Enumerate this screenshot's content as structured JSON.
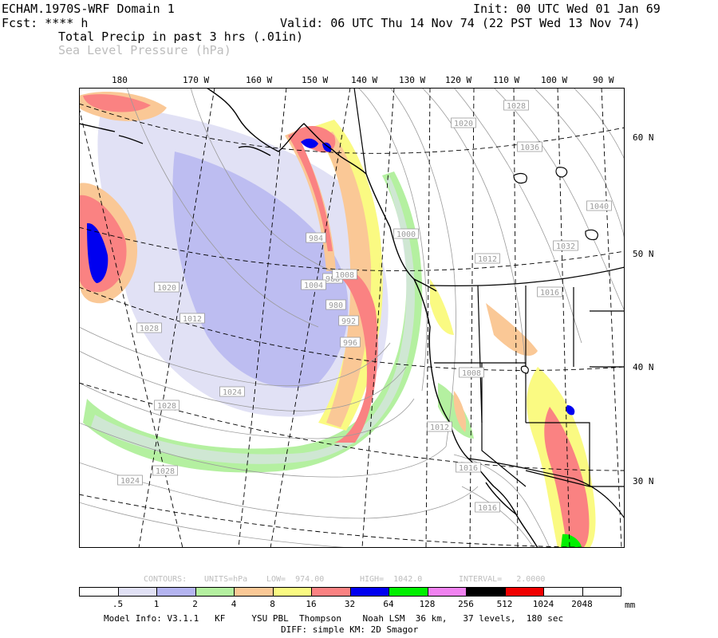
{
  "header": {
    "model": "ECHAM.1970S-WRF Domain 1",
    "init": "Init: 00 UTC Wed 01 Jan 69",
    "fcst": "Fcst: **** h",
    "valid": "Valid: 06 UTC Thu 14 Nov 74 (22 PST Wed 13 Nov 74)",
    "field1": "Total Precip in past 3 hrs (.01in)",
    "field2": "Sea Level Pressure (hPa)"
  },
  "longitude_labels": [
    "180",
    "170 W",
    "160 W",
    "150 W",
    "140 W",
    "130 W",
    "120 W",
    "110 W",
    "100 W",
    "90 W"
  ],
  "latitude_labels": [
    "60 N",
    "50 N",
    "40 N",
    "30 N"
  ],
  "pressure_labels": [
    "1028",
    "1020",
    "1036",
    "1040",
    "1032",
    "1000",
    "1012",
    "1016",
    "984",
    "988",
    "980",
    "992",
    "996",
    "1004",
    "1008",
    "1012",
    "1020",
    "1024",
    "1028",
    "1024",
    "1028",
    "1012",
    "1016",
    "1016",
    "1028",
    "1008"
  ],
  "contour_info": {
    "contours": "CONTOURS:",
    "units": "UNITS=hPa",
    "low": "LOW=  974.00",
    "high": "HIGH=  1042.0",
    "interval": "INTERVAL=   2.0000"
  },
  "colorbar": {
    "labels": [
      ".5",
      "1",
      "2",
      "4",
      "8",
      "16",
      "32",
      "64",
      "128",
      "256",
      "512",
      "1024",
      "2048"
    ],
    "unit": "mm",
    "colors": [
      "#ffffff",
      "#e1e1f5",
      "#b4b4f0",
      "#b4f0a0",
      "#fac896",
      "#fafa82",
      "#fa8282",
      "#0000f0",
      "#00f000",
      "#f082f0",
      "#000000",
      "#f00000",
      "#ffffff",
      "#ffffff"
    ]
  },
  "footer": {
    "line1": "Model Info: V3.1.1   KF     YSU PBL  Thompson    Noah LSM  36 km,   37 levels,  180 sec",
    "line2": "DIFF: simple KM: 2D Smagor"
  }
}
